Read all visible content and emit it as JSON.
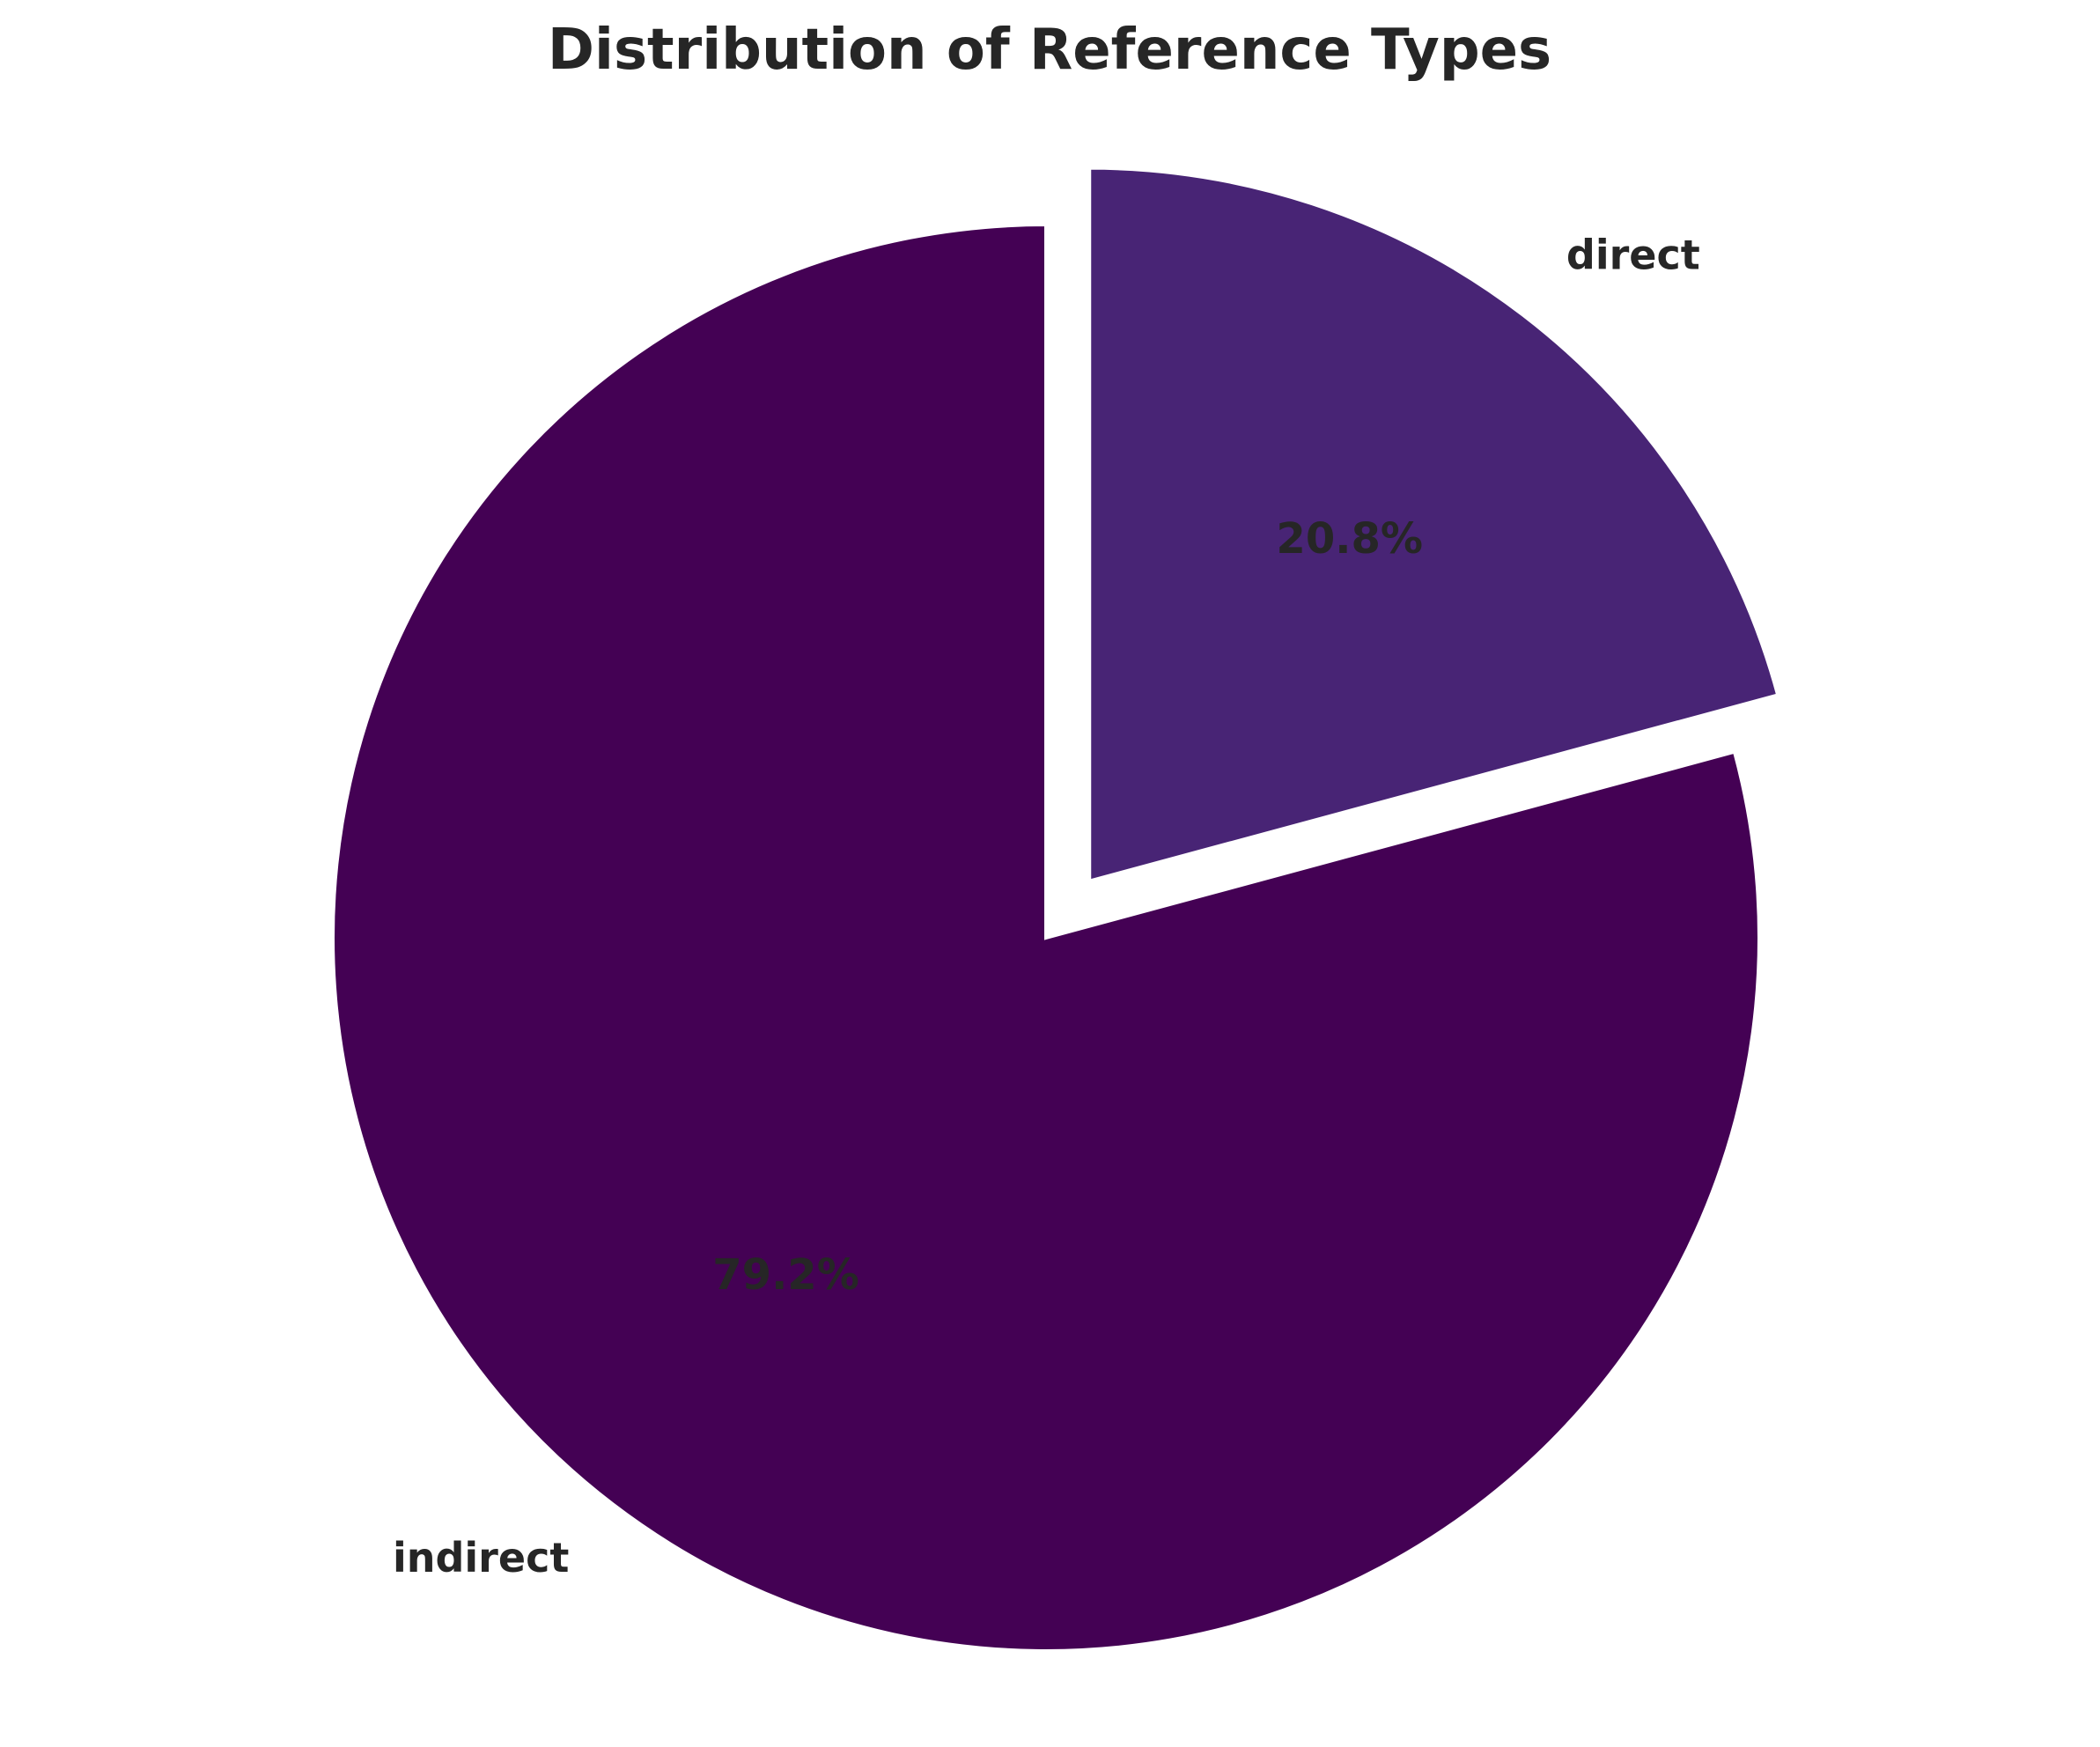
{
  "chart_data": {
    "type": "pie",
    "title": "Distribution of Reference Types",
    "slices": [
      {
        "label": "direct",
        "value": 20.8,
        "pct_label": "20.8%",
        "color": "#482475",
        "exploded": true
      },
      {
        "label": "indirect",
        "value": 79.2,
        "pct_label": "79.2%",
        "color": "#440154",
        "exploded": false
      }
    ],
    "start_angle": 90,
    "direction": "clockwise",
    "legend": "none"
  }
}
